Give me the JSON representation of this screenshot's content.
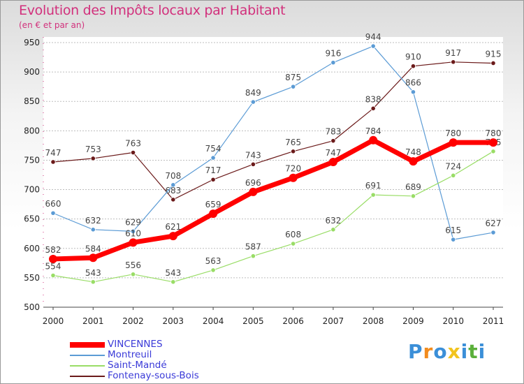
{
  "chart_data": {
    "type": "line",
    "title": "Evolution des Impôts locaux par Habitant",
    "subtitle": "(en € et par an)",
    "categories": [
      "2000",
      "2001",
      "2002",
      "2003",
      "2004",
      "2005",
      "2006",
      "2007",
      "2008",
      "2009",
      "2010",
      "2011"
    ],
    "ylim": [
      500,
      950
    ],
    "yticks": [
      500,
      550,
      600,
      650,
      700,
      750,
      800,
      850,
      900,
      950
    ],
    "grid": true,
    "legend_position": "bottom-left",
    "series": [
      {
        "name": "Fontenay-sous-Bois",
        "color": "#6b1a1a",
        "values": [
          747,
          753,
          763,
          683,
          717,
          743,
          765,
          783,
          838,
          910,
          917,
          915
        ]
      },
      {
        "name": "Montreuil",
        "color": "#5b9bd5",
        "values": [
          660,
          632,
          629,
          708,
          754,
          849,
          875,
          916,
          944,
          866,
          615,
          627
        ]
      },
      {
        "name": "Saint-Mandé",
        "color": "#99dd66",
        "values": [
          554,
          543,
          556,
          543,
          563,
          587,
          608,
          632,
          691,
          689,
          724,
          765
        ]
      },
      {
        "name": "VINCENNES",
        "color": "#ff0000",
        "values": [
          582,
          584,
          610,
          621,
          659,
          696,
          720,
          747,
          784,
          748,
          780,
          780
        ]
      }
    ]
  },
  "legend": [
    {
      "name": "VINCENNES",
      "color": "#ff0000"
    },
    {
      "name": "Montreuil",
      "color": "#5b9bd5"
    },
    {
      "name": "Saint-Mandé",
      "color": "#99dd66"
    },
    {
      "name": "Fontenay-sous-Bois",
      "color": "#6b1a1a"
    }
  ],
  "logo": {
    "letters": [
      "P",
      "r",
      "o",
      "x",
      "i",
      "t",
      "i"
    ],
    "colors": [
      "#3b8fd8",
      "#f28c1e",
      "#3b8fd8",
      "#f2c41e",
      "#3b8fd8",
      "#5bb03b",
      "#3b8fd8"
    ]
  }
}
